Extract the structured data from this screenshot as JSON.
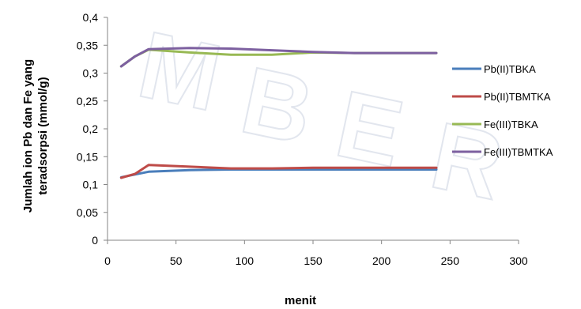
{
  "chart_data": {
    "type": "line",
    "title": "",
    "xlabel": "menit",
    "ylabel_lines": [
      "Jumlah ion Pb dan Fe yang",
      "teradsorpsi  (mmol/g)"
    ],
    "xlim": [
      0,
      300
    ],
    "ylim": [
      0,
      0.4
    ],
    "x_ticks": [
      0,
      50,
      100,
      150,
      200,
      250,
      300
    ],
    "x_tick_labels": [
      "0",
      "50",
      "100",
      "150",
      "200",
      "250",
      "300"
    ],
    "y_ticks": [
      0,
      0.05,
      0.1,
      0.15,
      0.2,
      0.25,
      0.3,
      0.35,
      0.4
    ],
    "y_tick_labels": [
      "0",
      "0,05",
      "0,1",
      "0,15",
      "0,2",
      "0,25",
      "0,3",
      "0,35",
      "0,4"
    ],
    "grid": false,
    "legend_position": "right",
    "series": [
      {
        "name": "Pb(II)TBKA",
        "color": "#4a7ebb",
        "x": [
          10,
          20,
          30,
          60,
          90,
          120,
          150,
          180,
          210,
          240
        ],
        "y": [
          0.113,
          0.118,
          0.123,
          0.126,
          0.127,
          0.127,
          0.127,
          0.127,
          0.127,
          0.127
        ]
      },
      {
        "name": "Pb(II)TBMTKA",
        "color": "#be4b48",
        "x": [
          10,
          20,
          30,
          60,
          90,
          120,
          150,
          180,
          210,
          240
        ],
        "y": [
          0.112,
          0.119,
          0.135,
          0.132,
          0.129,
          0.129,
          0.13,
          0.13,
          0.13,
          0.13
        ]
      },
      {
        "name": "Fe(III)TBKA",
        "color": "#98b954",
        "x": [
          10,
          20,
          30,
          60,
          90,
          120,
          150,
          180,
          210,
          240
        ],
        "y": [
          0.312,
          0.33,
          0.342,
          0.337,
          0.333,
          0.333,
          0.337,
          0.336,
          0.336,
          0.336
        ]
      },
      {
        "name": "Fe(III)TBMTKA",
        "color": "#7d60a0",
        "x": [
          10,
          20,
          30,
          60,
          90,
          120,
          150,
          180,
          210,
          240
        ],
        "y": [
          0.312,
          0.33,
          0.343,
          0.345,
          0.344,
          0.341,
          0.338,
          0.336,
          0.336,
          0.336
        ]
      }
    ]
  }
}
